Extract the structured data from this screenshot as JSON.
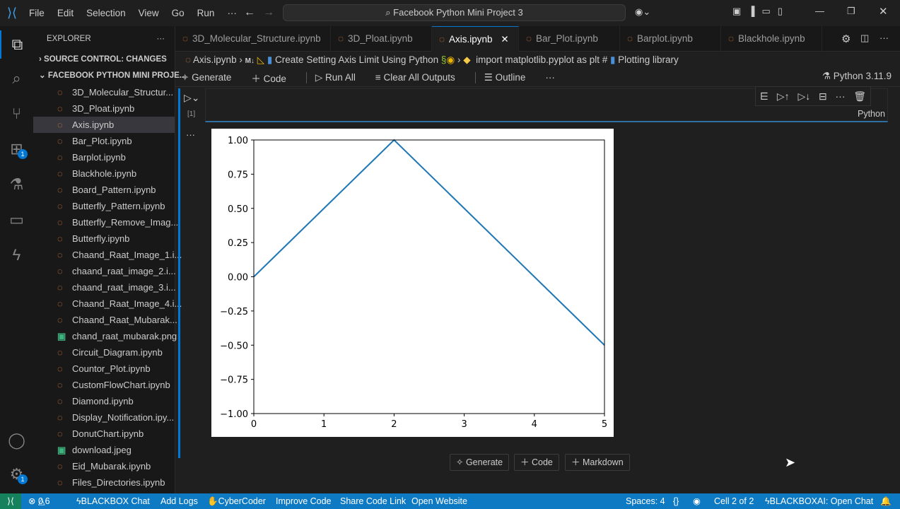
{
  "menu": [
    "File",
    "Edit",
    "Selection",
    "View",
    "Go",
    "Run",
    "···"
  ],
  "search": "Facebook Python Mini Project 3",
  "activity_badges": {
    "extensions": "1",
    "accounts": "1"
  },
  "sidebar": {
    "title": "EXPLORER",
    "source_control": "SOURCE CONTROL: CHANGES",
    "project": "FACEBOOK PYTHON MINI PROJE...",
    "files": [
      "3D_Molecular_Structur...",
      "3D_Ploat.ipynb",
      "Axis.ipynb",
      "Bar_Plot.ipynb",
      "Barplot.ipynb",
      "Blackhole.ipynb",
      "Board_Pattern.ipynb",
      "Butterfly_Pattern.ipynb",
      "Butterfly_Remove_Imag...",
      "Butterfly.ipynb",
      "Chaand_Raat_Image_1.i...",
      "chaand_raat_image_2.i...",
      "chaand_raat_image_3.i...",
      "Chaand_Raat_Image_4.i...",
      "Chaand_Raat_Mubarak....",
      "chand_raat_mubarak.png",
      "Circuit_Diagram.ipynb",
      "Countor_Plot.ipynb",
      "CustomFlowChart.ipynb",
      "Diamond.ipynb",
      "Display_Notification.ipy...",
      "DonutChart.ipynb",
      "download.jpeg",
      "Eid_Mubarak.ipynb",
      "Files_Directories.ipynb"
    ],
    "selected": "Axis.ipynb"
  },
  "tabs": [
    "3D_Molecular_Structure.ipynb",
    "3D_Ploat.ipynb",
    "Axis.ipynb",
    "Bar_Plot.ipynb",
    "Barplot.ipynb",
    "Blackhole.ipynb"
  ],
  "active_tab": "Axis.ipynb",
  "breadcrumb": {
    "file": "Axis.ipynb",
    "section": "Create Setting Axis Limit Using Python",
    "code": "import matplotlib.pyplot as plt # ",
    "comment": "Plotting library"
  },
  "toolbar": {
    "generate": "Generate",
    "code": "Code",
    "run_all": "Run All",
    "clear": "Clear All Outputs",
    "outline": "Outline",
    "more": "···"
  },
  "kernel": "Python 3.11.9",
  "cell": {
    "exec_count": "[1]",
    "language": "Python"
  },
  "bottom_buttons": {
    "generate": "Generate",
    "code": "Code",
    "markdown": "Markdown"
  },
  "status": {
    "errors": "0",
    "warnings": "6",
    "blackbox": "BLACKBOX Chat",
    "add_logs": "Add Logs",
    "cybercoder": "CyberCoder",
    "improve": "Improve Code",
    "share": "Share Code Link",
    "website": "Open Website",
    "spaces": "Spaces: 4",
    "cell": "Cell 2 of 2",
    "blackboxai": "BLACKBOXAI: Open Chat"
  },
  "chart_data": {
    "type": "line",
    "x": [
      0,
      1,
      2,
      3,
      4,
      5
    ],
    "series": [
      {
        "values": [
          0,
          0.5,
          1,
          0.5,
          0,
          -0.5
        ],
        "color": "#1f77b4"
      }
    ],
    "xlim": [
      0,
      5
    ],
    "ylim": [
      -1,
      1
    ],
    "xticks": [
      "0",
      "1",
      "2",
      "3",
      "4",
      "5"
    ],
    "yticks": [
      "1.00",
      "0.75",
      "0.50",
      "0.25",
      "0.00",
      "−0.25",
      "−0.50",
      "−0.75",
      "−1.00"
    ],
    "grid": false
  }
}
